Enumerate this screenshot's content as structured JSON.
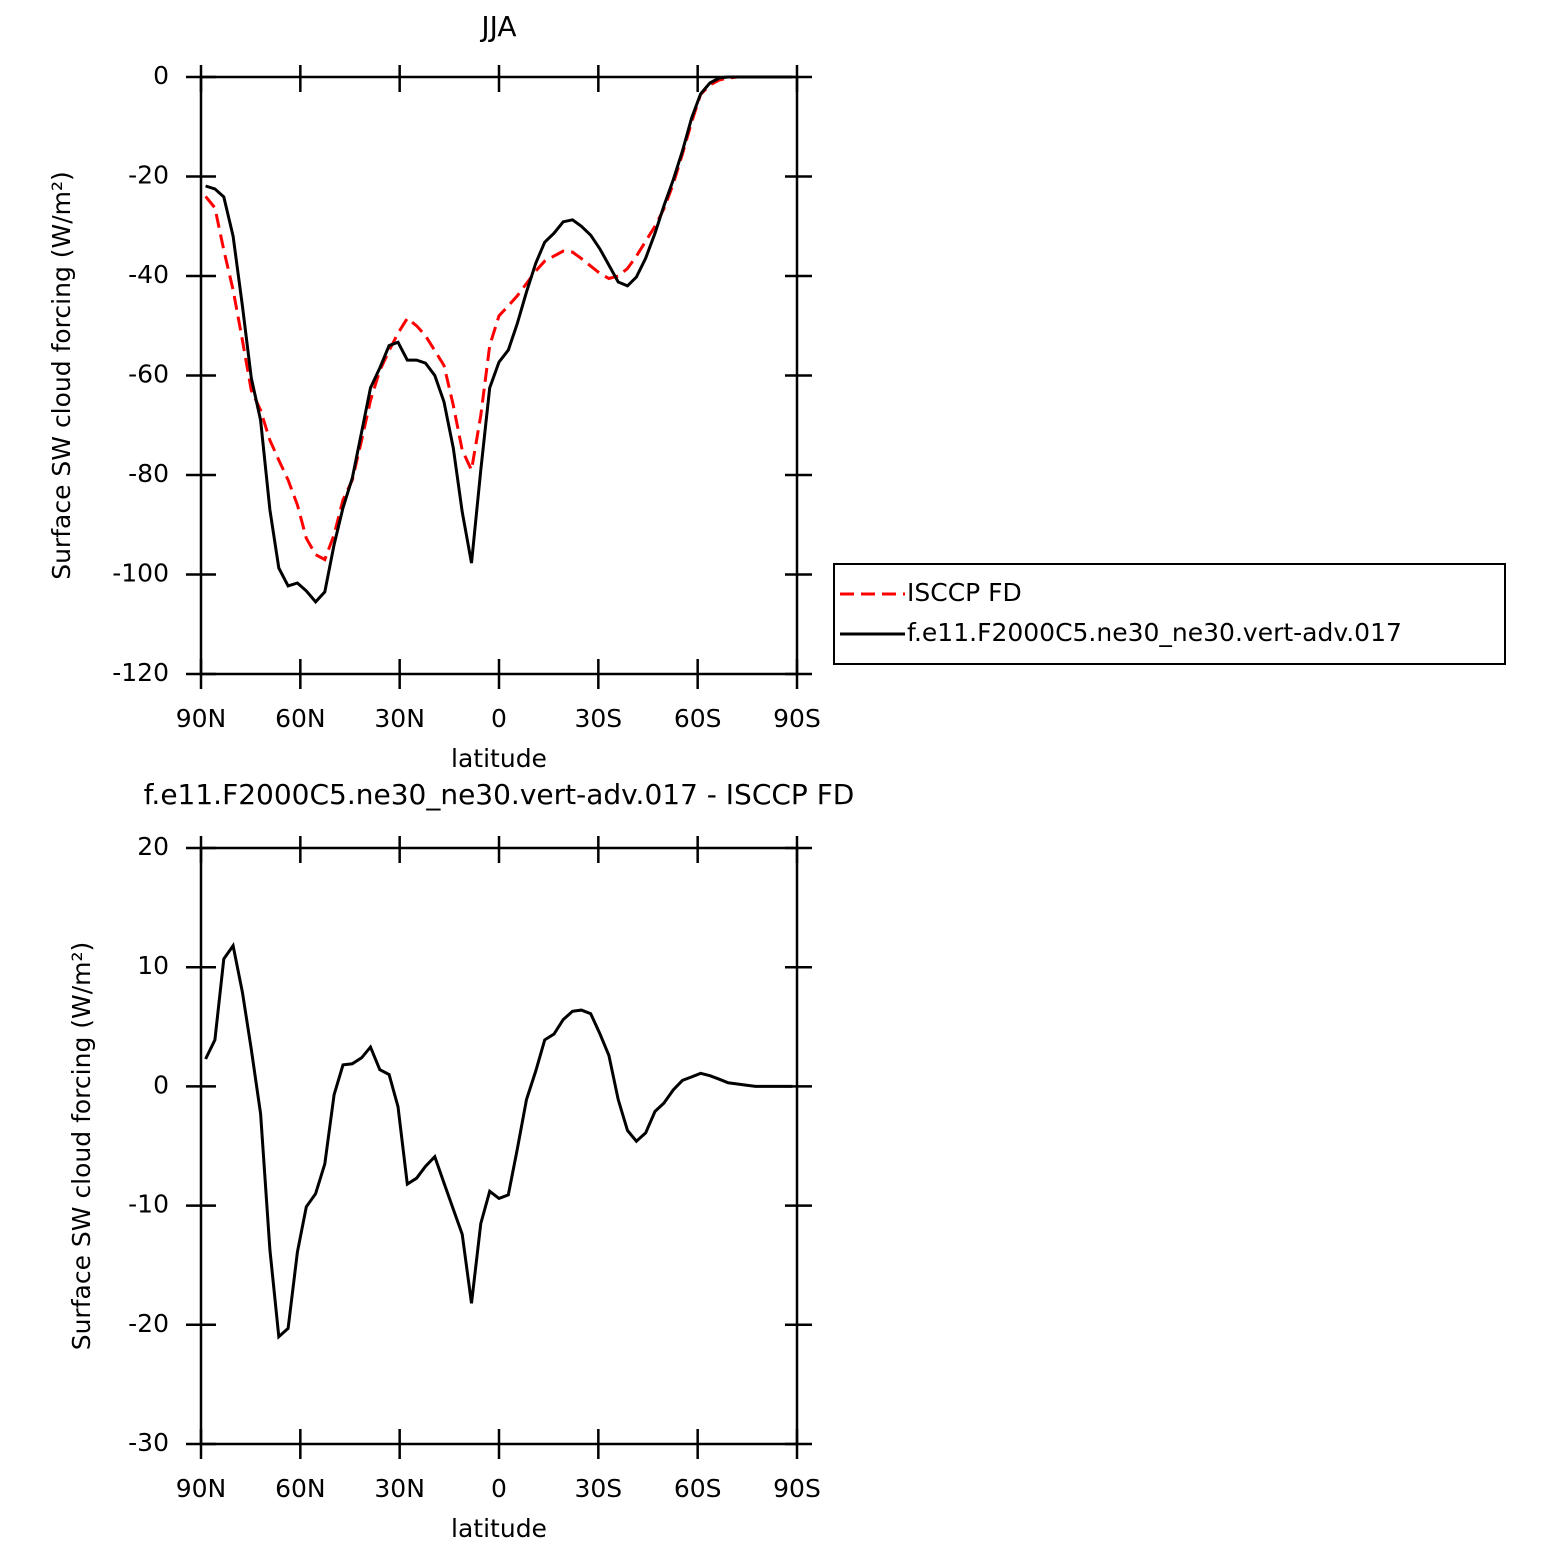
{
  "chart_data": [
    {
      "type": "line",
      "title": "JJA",
      "xlabel": "latitude",
      "ylabel": "Surface SW cloud forcing (W/m²)",
      "x": [
        88.6,
        85.8,
        83.1,
        80.3,
        77.5,
        74.8,
        72.0,
        69.2,
        66.5,
        63.7,
        60.9,
        58.2,
        55.4,
        52.6,
        49.8,
        47.1,
        44.3,
        41.5,
        38.8,
        36.0,
        33.2,
        30.5,
        27.7,
        24.9,
        22.2,
        19.4,
        16.6,
        13.8,
        11.1,
        8.3,
        5.5,
        2.8,
        0,
        -2.8,
        -5.5,
        -8.3,
        -11.1,
        -13.8,
        -16.6,
        -19.4,
        -22.2,
        -24.9,
        -27.7,
        -30.5,
        -33.2,
        -36.0,
        -38.8,
        -41.5,
        -44.3,
        -47.1,
        -49.8,
        -52.6,
        -55.4,
        -58.2,
        -60.9,
        -63.7,
        -66.5,
        -69.2,
        -72.0,
        -74.8,
        -77.5,
        -80.3,
        -83.1,
        -85.8,
        -88.6
      ],
      "xlim": [
        90,
        -90
      ],
      "xticks": [
        {
          "value": 90,
          "label": "90N"
        },
        {
          "value": 60,
          "label": "60N"
        },
        {
          "value": 30,
          "label": "30N"
        },
        0,
        {
          "value": -30,
          "label": "30S"
        },
        {
          "value": -60,
          "label": "60S"
        },
        {
          "value": -90,
          "label": "90S"
        }
      ],
      "ylim": [
        -120,
        0
      ],
      "yticks": [
        -120,
        -100,
        -80,
        -60,
        -40,
        -20,
        0
      ],
      "legend": "right",
      "series": [
        {
          "name": "ISCCP FD",
          "color": "#ff0000",
          "linestyle": "dashed",
          "values": [
            -24,
            -26.3,
            -34.8,
            -42.8,
            -52.9,
            -63,
            -67,
            -73,
            -77,
            -81,
            -86,
            -92.7,
            -96,
            -97,
            -92,
            -85,
            -81,
            -73,
            -65,
            -59,
            -55,
            -51.5,
            -48.5,
            -50,
            -52,
            -55,
            -58,
            -66,
            -75,
            -79,
            -68,
            -54,
            -48,
            -46,
            -44,
            -41.5,
            -39,
            -37,
            -36,
            -35,
            -35.2,
            -36.5,
            -38,
            -39.5,
            -40.5,
            -40,
            -38.5,
            -36,
            -33,
            -30,
            -26.5,
            -21.5,
            -15.5,
            -9,
            -3.5,
            -1.6,
            -0.6,
            -0.2,
            0,
            0,
            0,
            0,
            0,
            0,
            0
          ]
        },
        {
          "name": "f.e11.F2000C5.ne30_ne30.vert-adv.017",
          "color": "#000000",
          "linestyle": "solid",
          "values": [
            -21.9,
            -22.5,
            -24.1,
            -32,
            -46,
            -60.5,
            -69,
            -87,
            -98.7,
            -102.3,
            -101.7,
            -103.3,
            -105.5,
            -103.5,
            -94,
            -86.6,
            -80.6,
            -71.4,
            -62.5,
            -58.5,
            -54,
            -53.3,
            -56.9,
            -56.9,
            -57.5,
            -60,
            -65.3,
            -74.6,
            -87.4,
            -97.7,
            -79,
            -62.5,
            -57.3,
            -54.9,
            -49.6,
            -43.2,
            -37.4,
            -33.2,
            -31.4,
            -29.1,
            -28.7,
            -30,
            -31.8,
            -34.6,
            -37.8,
            -41.2,
            -42,
            -40.2,
            -36.4,
            -31.4,
            -25.9,
            -20.7,
            -14.9,
            -8.2,
            -3.4,
            -1.2,
            -0.2,
            0,
            0,
            0,
            0,
            0,
            0,
            0,
            0
          ]
        }
      ]
    },
    {
      "type": "line",
      "title": "f.e11.F2000C5.ne30_ne30.vert-adv.017 - ISCCP FD",
      "xlabel": "latitude",
      "ylabel": "Surface SW cloud forcing (W/m²)",
      "x": [
        88.6,
        85.8,
        83.1,
        80.3,
        77.5,
        74.8,
        72.0,
        69.2,
        66.5,
        63.7,
        60.9,
        58.2,
        55.4,
        52.6,
        49.8,
        47.1,
        44.3,
        41.5,
        38.8,
        36.0,
        33.2,
        30.5,
        27.7,
        24.9,
        22.2,
        19.4,
        16.6,
        13.8,
        11.1,
        8.3,
        5.5,
        2.8,
        0,
        -2.8,
        -5.5,
        -8.3,
        -11.1,
        -13.8,
        -16.6,
        -19.4,
        -22.2,
        -24.9,
        -27.7,
        -30.5,
        -33.2,
        -36.0,
        -38.8,
        -41.5,
        -44.3,
        -47.1,
        -49.8,
        -52.6,
        -55.4,
        -58.2,
        -60.9,
        -63.7,
        -66.5,
        -69.2,
        -72.0,
        -74.8,
        -77.5,
        -80.3,
        -83.1,
        -85.8,
        -88.6
      ],
      "xlim": [
        90,
        -90
      ],
      "xticks": [
        {
          "value": 90,
          "label": "90N"
        },
        {
          "value": 60,
          "label": "60N"
        },
        {
          "value": 30,
          "label": "30N"
        },
        0,
        {
          "value": -30,
          "label": "30S"
        },
        {
          "value": -60,
          "label": "60S"
        },
        {
          "value": -90,
          "label": "90S"
        }
      ],
      "ylim": [
        -30,
        20
      ],
      "yticks": [
        -30,
        -20,
        -10,
        0,
        10,
        20
      ],
      "series": [
        {
          "color": "#000000",
          "linestyle": "solid",
          "values": [
            2.3,
            3.9,
            10.7,
            11.8,
            7.9,
            3.1,
            -2.3,
            -13.7,
            -21,
            -20.3,
            -13.9,
            -10.1,
            -9,
            -6.5,
            -0.7,
            1.8,
            1.9,
            2.4,
            3.3,
            1.4,
            1,
            -1.7,
            -8.2,
            -7.7,
            -6.7,
            -5.9,
            -8.1,
            -10.3,
            -12.4,
            -18.2,
            -11.5,
            -8.8,
            -9.4,
            -9.1,
            -5.3,
            -1.1,
            1.3,
            3.9,
            4.4,
            5.6,
            6.3,
            6.4,
            6.1,
            4.4,
            2.6,
            -1.1,
            -3.7,
            -4.6,
            -3.9,
            -2.1,
            -1.4,
            -0.3,
            0.5,
            0.8,
            1.1,
            0.9,
            0.6,
            0.3,
            0.2,
            0.1,
            0,
            0,
            0,
            0,
            0
          ]
        }
      ]
    }
  ]
}
